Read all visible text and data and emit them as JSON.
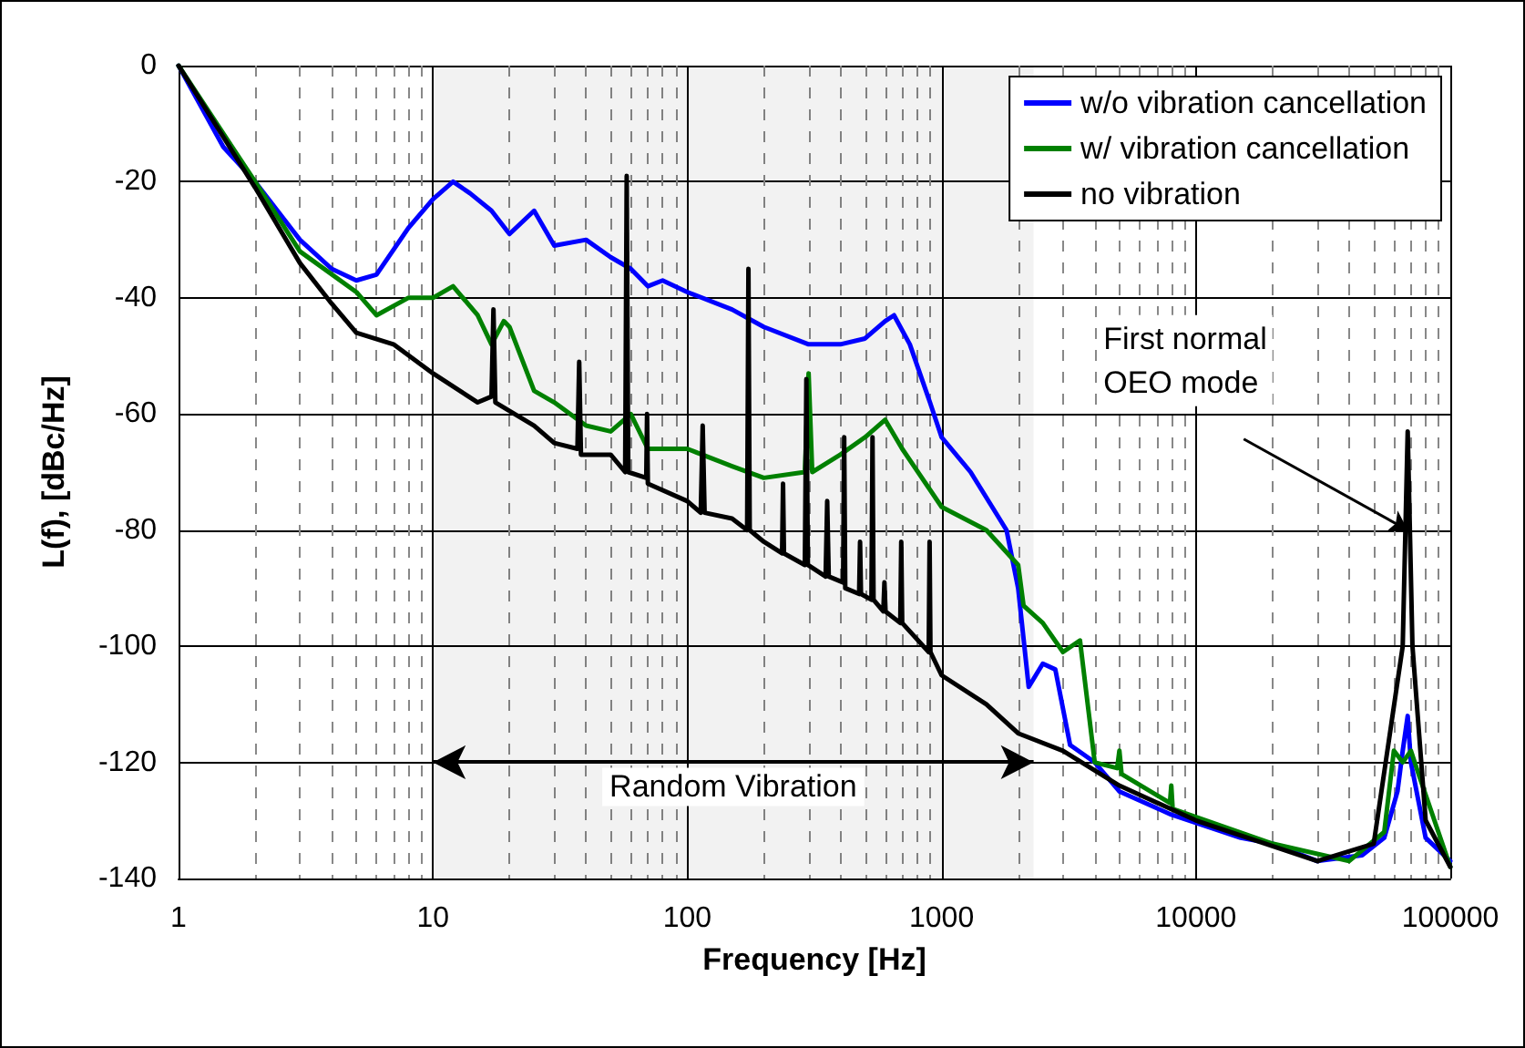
{
  "chart_data": {
    "type": "line",
    "xlabel": "Frequency [Hz]",
    "ylabel": "L(f), [dBc/Hz]",
    "log": "x",
    "xlim": [
      1,
      100000
    ],
    "xticks": [
      1,
      10,
      100,
      1000,
      10000,
      100000
    ],
    "ylim": [
      -140,
      0
    ],
    "yticks": [
      -140,
      -120,
      -100,
      -80,
      -60,
      -40,
      -20,
      0
    ],
    "grid": true,
    "legend": "top right",
    "marker": "none",
    "line_style": "solid",
    "bands": [
      {
        "axis": "x",
        "from": 10,
        "to": 2300,
        "label": "Random Vibration",
        "color": "#000000"
      }
    ],
    "annotations": [
      {
        "text": "First normal\nOEO mode",
        "x": 68000,
        "y": -80
      }
    ],
    "series": [
      {
        "name": "w/o vibration cancellation",
        "color": "#0000ff",
        "x": [
          1,
          1.5,
          2,
          3,
          4,
          5,
          6,
          8,
          10,
          12,
          14,
          17,
          20,
          25,
          30,
          40,
          50,
          60,
          70,
          80,
          100,
          150,
          200,
          300,
          400,
          500,
          600,
          650,
          750,
          900,
          1000,
          1300,
          1800,
          2000,
          2200,
          2500,
          2800,
          3200,
          4000,
          5000,
          8000,
          15000,
          20000,
          30000,
          45000,
          55000,
          62000,
          65000,
          68000,
          70000,
          80000,
          100000
        ],
        "values": [
          0,
          -14,
          -20,
          -30,
          -35,
          -37,
          -36,
          -28,
          -23,
          -20,
          -22,
          -25,
          -29,
          -25,
          -31,
          -30,
          -33,
          -35,
          -38,
          -37,
          -39,
          -42,
          -45,
          -48,
          -48,
          -47,
          -44,
          -43,
          -48,
          -58,
          -64,
          -70,
          -80,
          -90,
          -107,
          -103,
          -104,
          -117,
          -120,
          -125,
          -129,
          -133,
          -134,
          -137,
          -136,
          -133,
          -125,
          -118,
          -112,
          -120,
          -133,
          -137
        ]
      },
      {
        "name": "w/ vibration cancellation",
        "color": "#008000",
        "x": [
          1,
          2,
          3,
          5,
          6,
          8,
          10,
          12,
          15,
          17,
          19,
          20,
          25,
          30,
          40,
          50,
          60,
          70,
          100,
          150,
          200,
          290,
          300,
          310,
          400,
          500,
          600,
          700,
          1000,
          1500,
          2000,
          2100,
          2500,
          3000,
          3500,
          4000,
          4900,
          5000,
          5100,
          7900,
          8000,
          8100,
          20000,
          40000,
          55000,
          60000,
          65000,
          70000,
          75000,
          100000
        ],
        "values": [
          0,
          -20,
          -32,
          -39,
          -43,
          -40,
          -40,
          -38,
          -43,
          -48,
          -44,
          -45,
          -56,
          -58,
          -62,
          -63,
          -60,
          -66,
          -66,
          -69,
          -71,
          -70,
          -53,
          -70,
          -67,
          -64,
          -61,
          -66,
          -76,
          -80,
          -86,
          -93,
          -96,
          -101,
          -99,
          -120,
          -121,
          -118,
          -122,
          -127,
          -124,
          -128,
          -134,
          -137,
          -132,
          -118,
          -120,
          -118,
          -122,
          -138
        ]
      },
      {
        "name": "no vibration",
        "color": "#000000",
        "x": [
          1,
          2,
          3,
          4,
          5,
          7,
          10,
          15,
          17,
          17.3,
          17.6,
          25,
          30,
          37,
          37.6,
          38.2,
          50,
          57,
          57.8,
          58.6,
          69,
          69.5,
          70,
          100,
          113,
          115,
          117,
          150,
          172,
          174,
          176,
          200,
          236,
          238,
          240,
          290,
          294,
          298,
          350,
          355,
          360,
          410,
          414,
          418,
          474,
          478,
          482,
          530,
          535,
          540,
          590,
          596,
          602,
          688,
          694,
          700,
          890,
          897,
          904,
          1000,
          1500,
          2000,
          3000,
          5000,
          10000,
          30000,
          50000,
          65000,
          68000,
          71000,
          80000,
          100000
        ],
        "values": [
          0,
          -21,
          -34,
          -41,
          -46,
          -48,
          -53,
          -58,
          -57,
          -42,
          -58,
          -62,
          -65,
          -66,
          -51,
          -67,
          -67,
          -70,
          -19,
          -70,
          -71,
          -60,
          -72,
          -75,
          -77,
          -62,
          -77,
          -78,
          -80,
          -35,
          -80,
          -82,
          -84,
          -72,
          -84,
          -86,
          -54,
          -86,
          -88,
          -75,
          -88,
          -89,
          -64,
          -90,
          -91,
          -82,
          -91,
          -92,
          -64,
          -92,
          -94,
          -89,
          -94,
          -96,
          -82,
          -96,
          -101,
          -82,
          -101,
          -105,
          -110,
          -115,
          -118,
          -124,
          -130,
          -137,
          -134,
          -100,
          -63,
          -100,
          -130,
          -138
        ]
      }
    ]
  }
}
